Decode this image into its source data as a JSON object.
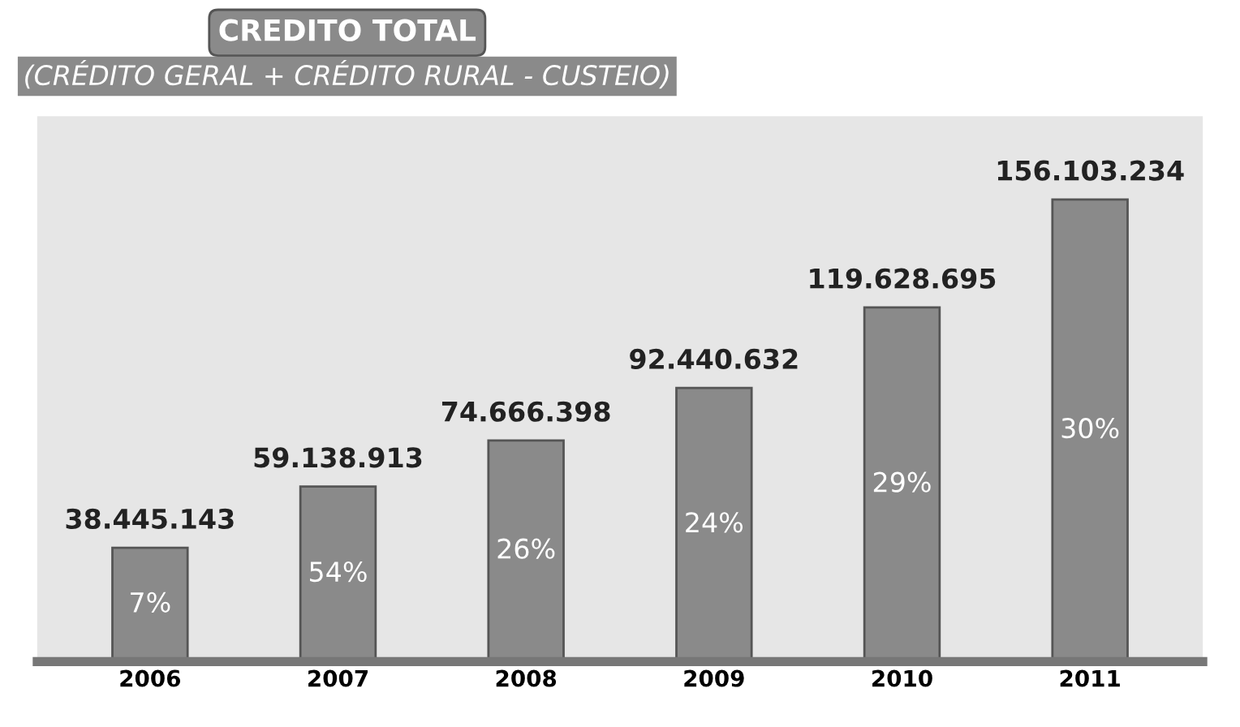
{
  "chart_data": {
    "type": "bar",
    "title": "CREDITO TOTAL",
    "subtitle": "(CRÉDITO GERAL + CRÉDITO RURAL - CUSTEIO)",
    "categories": [
      "2006",
      "2007",
      "2008",
      "2009",
      "2010",
      "2011"
    ],
    "values": [
      38445143,
      59138913,
      74666398,
      92440632,
      119628695,
      156103234
    ],
    "value_labels": [
      "38.445.143",
      "59.138.913",
      "74.666.398",
      "92.440.632",
      "119.628.695",
      "156.103.234"
    ],
    "color": "#8a8a8a",
    "annotations": [
      "7%",
      "54%",
      "26%",
      "24%",
      "29%",
      "30%"
    ],
    "grid": false,
    "legend": false
  }
}
